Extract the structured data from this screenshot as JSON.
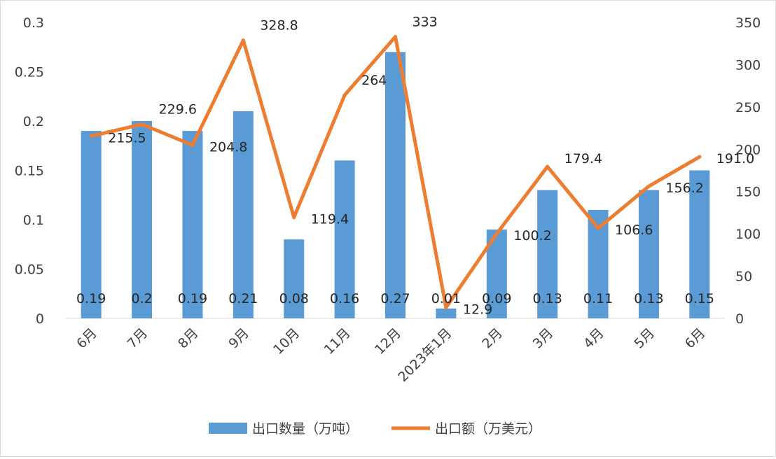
{
  "chart_data": {
    "type": "bar+line",
    "categories": [
      "6月",
      "7月",
      "8月",
      "9月",
      "10月",
      "11月",
      "12月",
      "2023年1月",
      "2月",
      "3月",
      "4月",
      "5月",
      "6月"
    ],
    "series": [
      {
        "name": "出口数量（万吨）",
        "type": "bar",
        "axis": "left",
        "color": "#5b9bd5",
        "values": [
          0.19,
          0.2,
          0.19,
          0.21,
          0.08,
          0.16,
          0.27,
          0.01,
          0.09,
          0.13,
          0.11,
          0.13,
          0.15
        ],
        "labels": [
          "0.19",
          "0.2",
          "0.19",
          "0.21",
          "0.08",
          "0.16",
          "0.27",
          "0.01",
          "0.09",
          "0.13",
          "0.11",
          "0.13",
          "0.15"
        ]
      },
      {
        "name": "出口额（万美元）",
        "type": "line",
        "axis": "right",
        "color": "#ed7d31",
        "values": [
          215.5,
          229.6,
          204.8,
          328.8,
          119.4,
          264,
          333,
          12.9,
          100.2,
          179.4,
          106.6,
          156.2,
          191.0
        ],
        "labels": [
          "215.5",
          "229.6",
          "204.8",
          "328.8",
          "119.4",
          "264",
          "333",
          "12.9",
          "100.2",
          "179.4",
          "106.6",
          "156.2",
          "191.0"
        ]
      }
    ],
    "y_left": {
      "min": 0,
      "max": 0.3,
      "ticks": [
        "0",
        "0.05",
        "0.1",
        "0.15",
        "0.2",
        "0.25",
        "0.3"
      ]
    },
    "y_right": {
      "min": 0,
      "max": 350,
      "ticks": [
        "0",
        "50",
        "100",
        "150",
        "200",
        "250",
        "300",
        "350"
      ]
    },
    "grid": false,
    "legend_position": "bottom",
    "title": "",
    "xlabel": "",
    "ylabel": ""
  }
}
